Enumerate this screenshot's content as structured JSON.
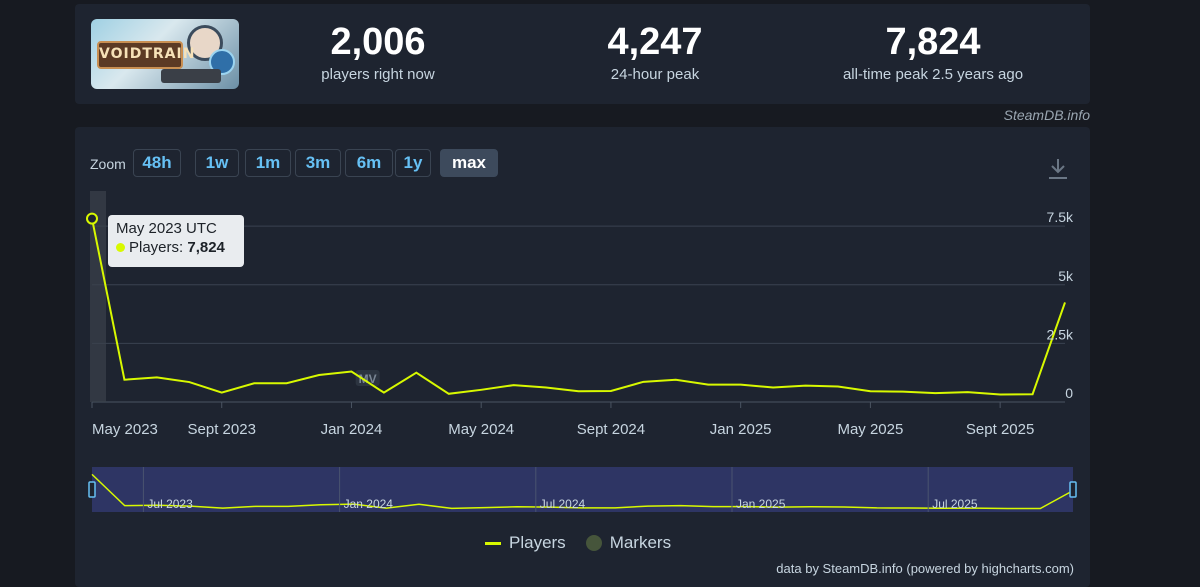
{
  "app": {
    "logo_text": "VOIDTRAIN"
  },
  "stats": {
    "now_value": "2,006",
    "now_label": "players right now",
    "peak24_value": "4,247",
    "peak24_label": "24-hour peak",
    "alltime_value": "7,824",
    "alltime_label": "all-time peak 2.5 years ago"
  },
  "attribution": "SteamDB.info",
  "zoom": {
    "label": "Zoom",
    "buttons": [
      "48h",
      "1w",
      "1m",
      "3m",
      "6m",
      "1y",
      "max"
    ],
    "active": "max"
  },
  "tooltip": {
    "title": "May 2023 UTC",
    "series_label": "Players: ",
    "value": "7,824"
  },
  "marker_label": "MV",
  "legend": {
    "players": "Players",
    "markers": "Markers"
  },
  "credits": "data by SteamDB.info (powered by highcharts.com)",
  "colors": {
    "accent": "#66c0f4",
    "series": "#d8f900",
    "background": "#171a21",
    "card": "#1e2430",
    "navigator_fill": "#2e3564"
  },
  "icons": [
    "download-icon"
  ],
  "chart_data": {
    "type": "line",
    "title": "",
    "xlabel": "",
    "ylabel": "",
    "x_tick_labels": [
      "May 2023",
      "Sept 2023",
      "Jan 2024",
      "May 2024",
      "Sept 2024",
      "Jan 2025",
      "May 2025",
      "Sept 2025"
    ],
    "y_tick_labels": [
      "0",
      "2.5k",
      "5k",
      "7.5k"
    ],
    "ylim": [
      0,
      9000
    ],
    "grid": true,
    "legend_position": "bottom-center",
    "series": [
      {
        "name": "Players",
        "x": [
          "2023-05",
          "2023-06",
          "2023-07",
          "2023-08",
          "2023-09",
          "2023-10",
          "2023-11",
          "2023-12",
          "2024-01",
          "2024-02",
          "2024-03",
          "2024-04",
          "2024-05",
          "2024-06",
          "2024-07",
          "2024-08",
          "2024-09",
          "2024-10",
          "2024-11",
          "2024-12",
          "2025-01",
          "2025-02",
          "2025-03",
          "2025-04",
          "2025-05",
          "2025-06",
          "2025-07",
          "2025-08",
          "2025-09",
          "2025-10",
          "2025-11"
        ],
        "values": [
          7824,
          950,
          1050,
          850,
          400,
          800,
          800,
          1150,
          1300,
          400,
          1250,
          350,
          520,
          720,
          620,
          460,
          470,
          860,
          950,
          740,
          740,
          620,
          700,
          660,
          460,
          440,
          380,
          420,
          320,
          330,
          4247
        ]
      }
    ],
    "markers": [
      {
        "label": "MV",
        "x": "2024-02"
      }
    ],
    "navigator_labels": [
      "Jul 2023",
      "Jan 2024",
      "Jul 2024",
      "Jan 2025",
      "Jul 2025"
    ]
  }
}
